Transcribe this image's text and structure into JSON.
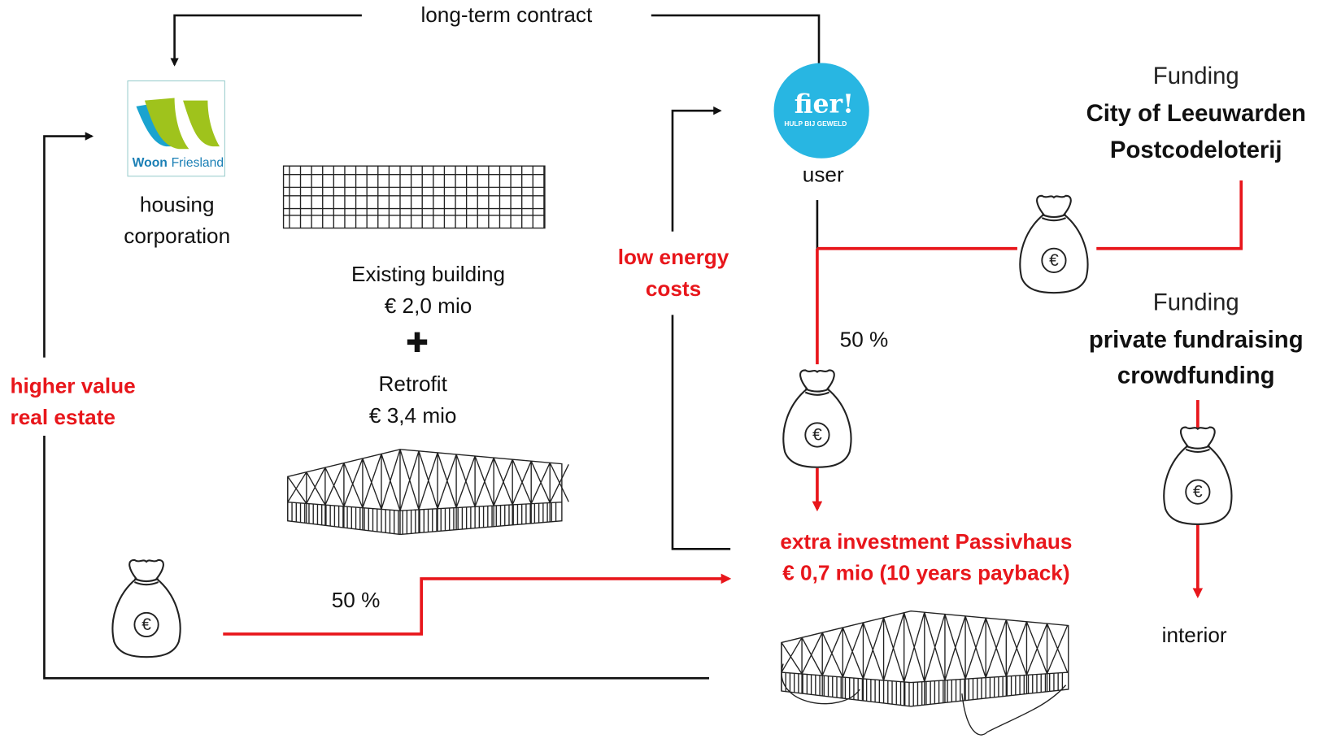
{
  "contract": "long-term contract",
  "housing": {
    "logo_part1": "Woon",
    "logo_part2": "Friesland",
    "label_line1": "housing",
    "label_line2": "corporation"
  },
  "user": {
    "logo": "fier!",
    "logo_tagline": "HULP BIJ GEWELD",
    "label": "user"
  },
  "existing": {
    "title": "Existing building",
    "cost": "€ 2,0 mio"
  },
  "plus": "✚",
  "retrofit": {
    "title": "Retrofit",
    "cost": "€ 3,4 mio"
  },
  "low_energy": {
    "line1": "low energy",
    "line2": "costs"
  },
  "higher_value": {
    "line1": "higher value",
    "line2": "real estate"
  },
  "share_user": "50 %",
  "share_housing": "50 %",
  "funding1": {
    "heading": "Funding",
    "line1": "City of Leeuwarden",
    "line2": "Postcodeloterij"
  },
  "funding2": {
    "heading": "Funding",
    "line1": "private fundraising",
    "line2": "crowdfunding"
  },
  "interior": "interior",
  "investment": {
    "line1": "extra investment Passivhaus",
    "line2": "€ 0,7 mio (10 years payback)"
  },
  "bag_symbol": "€"
}
